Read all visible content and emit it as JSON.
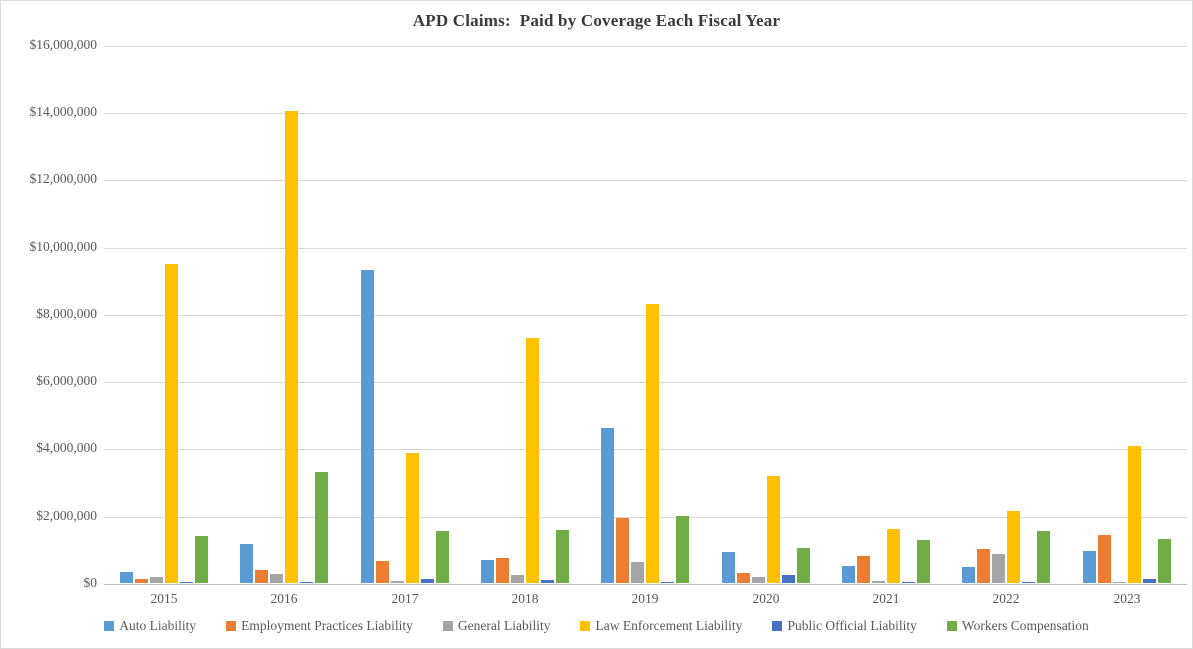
{
  "title": "APD Claims:  Paid by Coverage Each Fiscal Year",
  "chart_data": {
    "type": "bar",
    "title": "APD Claims:  Paid by Coverage Each Fiscal Year",
    "xlabel": "",
    "ylabel": "",
    "categories": [
      "2015",
      "2016",
      "2017",
      "2018",
      "2019",
      "2020",
      "2021",
      "2022",
      "2023"
    ],
    "series": [
      {
        "name": "Auto Liability",
        "color": "#5B9BD5",
        "values": [
          330000,
          1150000,
          9300000,
          680000,
          4600000,
          920000,
          520000,
          480000,
          950000
        ]
      },
      {
        "name": "Employment Practices Liability",
        "color": "#ED7D31",
        "values": [
          120000,
          400000,
          650000,
          750000,
          1940000,
          310000,
          790000,
          1020000,
          1440000
        ]
      },
      {
        "name": "General Liability",
        "color": "#A5A5A5",
        "values": [
          180000,
          260000,
          70000,
          230000,
          620000,
          190000,
          50000,
          850000,
          40000
        ]
      },
      {
        "name": "Law Enforcement Liability",
        "color": "#FFC000",
        "values": [
          9500000,
          14050000,
          3880000,
          7300000,
          8300000,
          3170000,
          1600000,
          2150000,
          4080000
        ]
      },
      {
        "name": "Public Official Liability",
        "color": "#4472C4",
        "values": [
          30000,
          40000,
          120000,
          100000,
          40000,
          230000,
          40000,
          30000,
          110000
        ]
      },
      {
        "name": "Workers Compensation",
        "color": "#70AD47",
        "values": [
          1400000,
          3300000,
          1550000,
          1580000,
          1980000,
          1030000,
          1280000,
          1550000,
          1310000
        ]
      }
    ],
    "ylim": [
      0,
      16000000
    ],
    "y_tick_step": 2000000,
    "y_tick_labels": [
      "$0",
      "$2,000,000",
      "$4,000,000",
      "$6,000,000",
      "$8,000,000",
      "$10,000,000",
      "$12,000,000",
      "$14,000,000",
      "$16,000,000"
    ],
    "grid": true,
    "legend_position": "bottom",
    "colors": {
      "gridline": "#D9D9D9",
      "axis_line": "#BFBFBF",
      "tick_text": "#595959",
      "title_text": "#3A3A3A",
      "background": "#FFFFFF"
    }
  }
}
